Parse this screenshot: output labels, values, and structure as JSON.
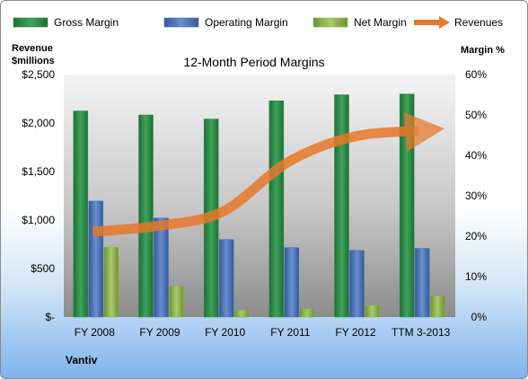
{
  "chart_data": {
    "type": "bar",
    "title": "12-Month Period Margins",
    "company": "Vantiv",
    "left_axis_label_line1": "Revenue",
    "left_axis_label_line2": "$millions",
    "right_axis_label": "Margin %",
    "categories": [
      "FY 2008",
      "FY 2009",
      "FY 2010",
      "FY 2011",
      "FY 2012",
      "TTM 3-2013"
    ],
    "left_ticks": [
      "$-",
      "$500",
      "$1,000",
      "$1,500",
      "$2,000",
      "$2,500"
    ],
    "right_ticks": [
      "0%",
      "10%",
      "20%",
      "30%",
      "40%",
      "50%",
      "60%"
    ],
    "ylim_left": [
      0,
      2500
    ],
    "ylim_right": [
      0,
      60
    ],
    "series": [
      {
        "name": "Gross Margin",
        "type": "bar",
        "axis": "right",
        "color": "#2e8b4a",
        "values": [
          51,
          50,
          49,
          53.5,
          55,
          55.2
        ]
      },
      {
        "name": "Operating Margin",
        "type": "bar",
        "axis": "right",
        "color": "#4a72b8",
        "values": [
          28.7,
          24.5,
          19.2,
          17.2,
          16.5,
          17
        ]
      },
      {
        "name": "Net Margin",
        "type": "bar",
        "axis": "right",
        "color": "#8db34a",
        "values": [
          17.3,
          7.6,
          1.7,
          2,
          2.9,
          5.2
        ]
      },
      {
        "name": "Revenues",
        "type": "line",
        "axis": "left",
        "color": "#e8782a",
        "values": [
          880,
          940,
          1090,
          1600,
          1860,
          1920
        ]
      }
    ],
    "legend_position": "top",
    "grid": false
  }
}
